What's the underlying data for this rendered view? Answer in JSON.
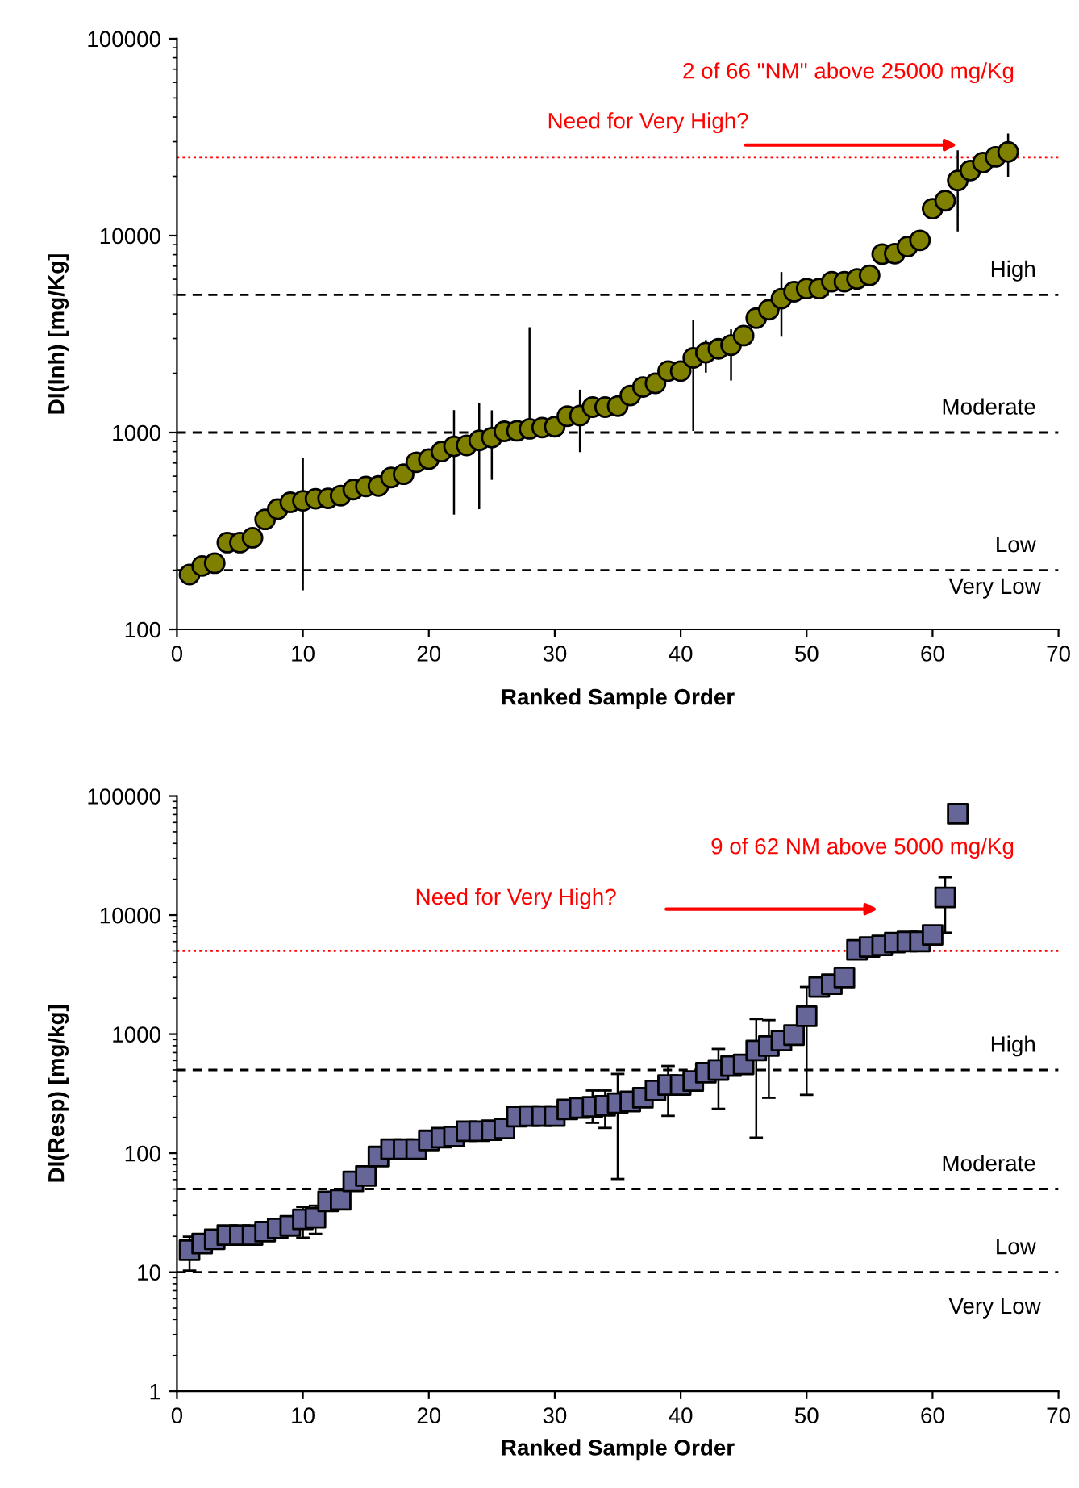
{
  "chart_data": [
    {
      "type": "scatter",
      "xlabel": "Ranked Sample Order",
      "ylabel": "DI(Inh) [mg/Kg]",
      "log": "y",
      "marker": "circle",
      "legend": false,
      "grid": false,
      "xlim": [
        0,
        70
      ],
      "xticks": [
        0,
        10,
        20,
        30,
        40,
        50,
        60,
        70
      ],
      "ylim": [
        100,
        100000
      ],
      "yticks": [
        100,
        1000,
        10000,
        100000
      ],
      "x": [
        1,
        2,
        3,
        4,
        5,
        6,
        7,
        8,
        9,
        10,
        11,
        12,
        13,
        14,
        15,
        16,
        17,
        18,
        19,
        20,
        21,
        22,
        23,
        24,
        25,
        26,
        27,
        28,
        29,
        30,
        31,
        32,
        33,
        34,
        35,
        36,
        37,
        38,
        39,
        40,
        41,
        42,
        43,
        44,
        45,
        46,
        47,
        48,
        49,
        50,
        51,
        52,
        53,
        54,
        55,
        56,
        57,
        58,
        59,
        60,
        61,
        62,
        63,
        64,
        65,
        66
      ],
      "series": [
        {
          "color": "#808000",
          "values": [
            190,
            210,
            217,
            276,
            276,
            292,
            362,
            408,
            442,
            450,
            461,
            463,
            478,
            513,
            532,
            535,
            591,
            614,
            706,
            733,
            800,
            851,
            860,
            912,
            942,
            1014,
            1020,
            1044,
            1060,
            1071,
            1210,
            1220,
            1346,
            1346,
            1362,
            1542,
            1703,
            1778,
            2051,
            2051,
            2393,
            2545,
            2661,
            2777,
            3104,
            3808,
            4205,
            4786,
            5188,
            5383,
            5383,
            5834,
            5834,
            6023,
            6285,
            8048,
            8100,
            8785,
            9462,
            13700,
            15040,
            19050,
            21400,
            23480,
            25100,
            26600
          ],
          "errors": [
            null,
            null,
            null,
            null,
            null,
            null,
            null,
            null,
            null,
            [
              158,
              740
            ],
            null,
            null,
            null,
            null,
            null,
            null,
            null,
            null,
            null,
            null,
            null,
            [
              383,
              1300
            ],
            null,
            [
              408,
              1406
            ],
            [
              575,
              1297
            ],
            null,
            null,
            [
              1044,
              3425
            ],
            null,
            null,
            null,
            [
              795,
              1651
            ],
            null,
            null,
            null,
            null,
            null,
            null,
            null,
            null,
            [
              1019,
              3740
            ],
            [
              2014,
              2951
            ],
            null,
            [
              1836,
              3342
            ],
            null,
            null,
            null,
            [
              3065,
              6530
            ],
            null,
            null,
            null,
            null,
            null,
            null,
            null,
            null,
            null,
            null,
            null,
            null,
            null,
            [
              10500,
              27100
            ],
            null,
            null,
            null,
            [
              19900,
              33000
            ]
          ]
        }
      ],
      "ref_lines": [
        {
          "axis": "y",
          "value": 25000,
          "color": "#ff0000",
          "line_style": "dotted"
        },
        {
          "axis": "y",
          "value": 5000,
          "label": "High",
          "color": "#000000",
          "line_style": "dashed"
        },
        {
          "axis": "y",
          "value": 1000,
          "label": "Moderate",
          "color": "#000000",
          "line_style": "dashed"
        },
        {
          "axis": "y",
          "value": 200,
          "label": "Low",
          "color": "#000000",
          "line_style": "dashed"
        }
      ],
      "annotations": [
        "2 of 66 \"NM\" above 25000 mg/Kg",
        "Need for Very High?",
        "Very Low"
      ]
    },
    {
      "type": "scatter",
      "xlabel": "Ranked Sample Order",
      "ylabel": "DI(Resp) [mg/kg]",
      "log": "y",
      "marker": "square",
      "legend": false,
      "grid": false,
      "xlim": [
        0,
        70
      ],
      "xticks": [
        0,
        10,
        20,
        30,
        40,
        50,
        60,
        70
      ],
      "ylim": [
        1,
        100000
      ],
      "yticks": [
        1,
        10,
        100,
        1000,
        10000,
        100000
      ],
      "x": [
        1,
        2,
        3,
        4,
        5,
        6,
        7,
        8,
        9,
        10,
        11,
        12,
        13,
        14,
        15,
        16,
        17,
        18,
        19,
        20,
        21,
        22,
        23,
        24,
        25,
        26,
        27,
        28,
        29,
        30,
        31,
        32,
        33,
        34,
        35,
        36,
        37,
        38,
        39,
        40,
        41,
        42,
        43,
        44,
        45,
        46,
        47,
        48,
        49,
        50,
        51,
        52,
        53,
        54,
        55,
        56,
        57,
        58,
        59,
        60,
        61,
        62
      ],
      "series": [
        {
          "color": "#666699",
          "values": [
            15.3,
            17.4,
            18.9,
            20.5,
            20.5,
            20.5,
            21.9,
            23.3,
            24.5,
            27.8,
            28.7,
            39.3,
            40.6,
            57.9,
            64.3,
            93.7,
            108,
            108,
            108,
            128,
            135,
            138,
            153,
            153,
            156,
            161,
            203,
            205,
            205,
            205,
            233,
            240,
            245,
            250,
            263,
            272,
            292,
            336,
            374,
            374,
            404,
            474,
            500,
            539,
            557,
            728,
            793,
            883,
            982,
            1413,
            2494,
            2630,
            2992,
            5108,
            5395,
            5570,
            5875,
            6000,
            6000,
            6823,
            14100,
            71100
          ],
          "errors": [
            [
              10.3,
              19.9
            ],
            null,
            null,
            null,
            null,
            null,
            null,
            null,
            null,
            [
              19.5,
              35.4
            ],
            [
              21,
              36.2
            ],
            null,
            null,
            null,
            null,
            null,
            null,
            null,
            null,
            null,
            null,
            null,
            null,
            null,
            null,
            null,
            null,
            null,
            null,
            null,
            null,
            null,
            [
              180,
              336
            ],
            [
              163,
              336
            ],
            [
              60.7,
              463
            ],
            null,
            null,
            null,
            [
              206,
              540
            ],
            null,
            null,
            null,
            [
              236,
              751
            ],
            null,
            null,
            [
              135,
              1340
            ],
            [
              292,
              1312
            ],
            null,
            null,
            [
              309,
              2494
            ],
            null,
            null,
            null,
            null,
            null,
            null,
            null,
            null,
            null,
            null,
            [
              7120,
              20800
            ],
            null
          ]
        }
      ],
      "ref_lines": [
        {
          "axis": "y",
          "value": 5000,
          "color": "#ff0000",
          "line_style": "dotted"
        },
        {
          "axis": "y",
          "value": 500,
          "label": "High",
          "color": "#000000",
          "line_style": "dashed"
        },
        {
          "axis": "y",
          "value": 50,
          "label": "Moderate",
          "color": "#000000",
          "line_style": "dashed"
        },
        {
          "axis": "y",
          "value": 10,
          "label": "Low",
          "color": "#000000",
          "line_style": "dashed"
        }
      ],
      "annotations": [
        "9 of 62 NM above 5000 mg/Kg",
        "Need for Very High?",
        "Very Low"
      ]
    }
  ]
}
